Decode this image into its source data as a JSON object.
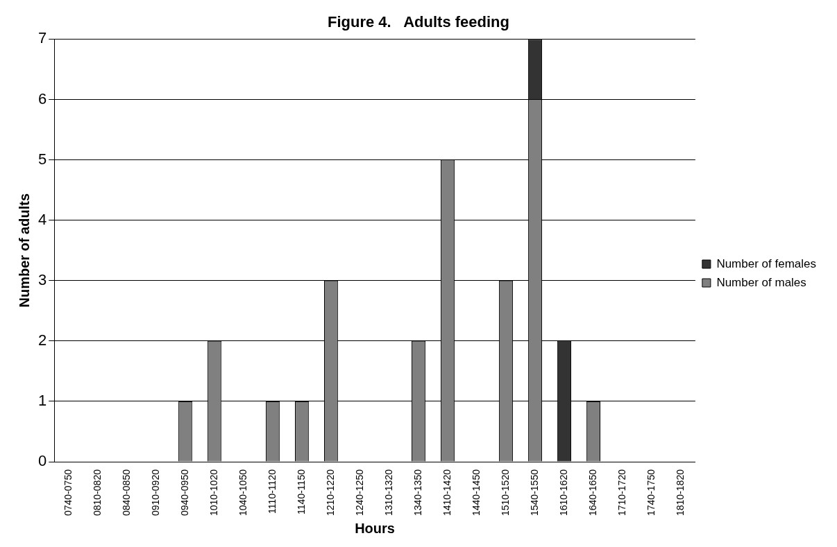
{
  "chart_data": {
    "type": "bar",
    "title": "Figure 4.   Adults feeding",
    "xlabel": "Hours",
    "ylabel": "Number of adults",
    "categories": [
      "0740-0750",
      "0810-0820",
      "0840-0850",
      "0910-0920",
      "0940-0950",
      "1010-1020",
      "1040-1050",
      "1110-1120",
      "1140-1150",
      "1210-1220",
      "1240-1250",
      "1310-1320",
      "1340-1350",
      "1410-1420",
      "1440-1450",
      "1510-1520",
      "1540-1550",
      "1610-1620",
      "1640-1650",
      "1710-1720",
      "1740-1750",
      "1810-1820"
    ],
    "series": [
      {
        "name": "Number of males",
        "color": "#808080",
        "values": [
          0,
          0,
          0,
          0,
          1,
          2,
          0,
          1,
          1,
          3,
          0,
          0,
          2,
          5,
          0,
          3,
          6,
          0,
          1,
          0,
          0,
          0
        ]
      },
      {
        "name": "Number of females",
        "color": "#333333",
        "values": [
          0,
          0,
          0,
          0,
          0,
          0,
          0,
          0,
          0,
          0,
          0,
          0,
          0,
          0,
          0,
          0,
          1,
          2,
          0,
          0,
          0,
          0
        ]
      }
    ],
    "stacked": true,
    "ylim": [
      0,
      7
    ],
    "yticks": [
      0,
      1,
      2,
      3,
      4,
      5,
      6,
      7
    ],
    "grid": "y",
    "legend": "right"
  }
}
